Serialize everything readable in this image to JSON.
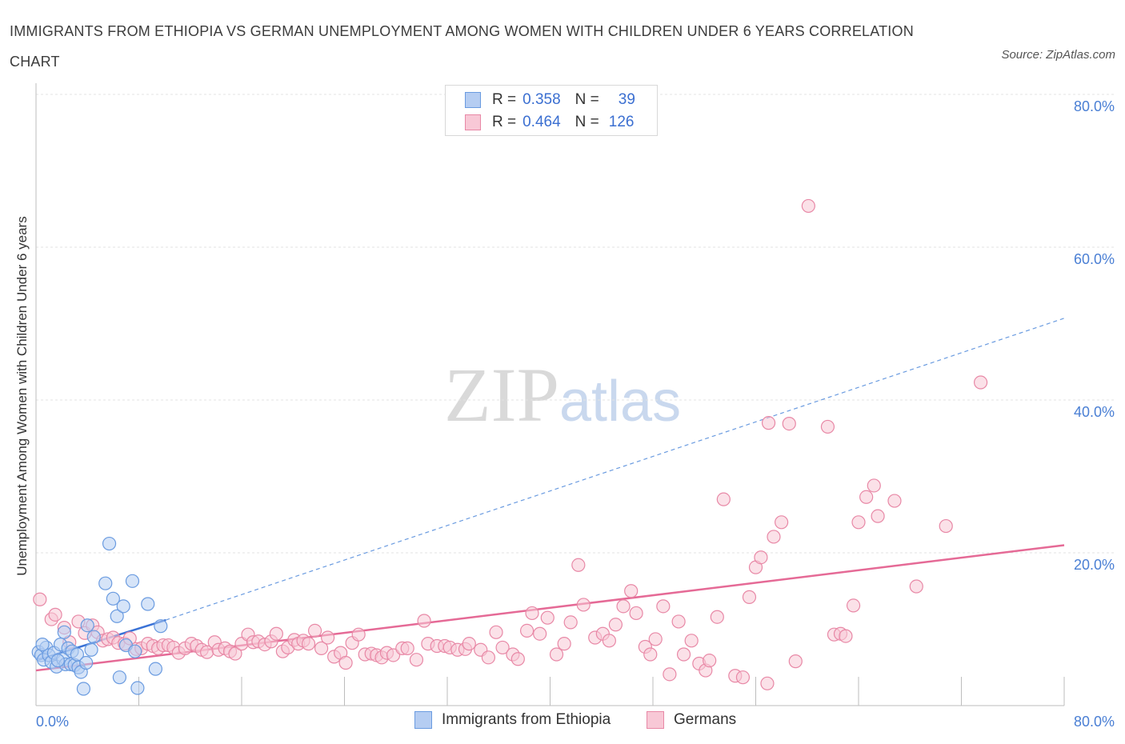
{
  "header": {
    "title": "IMMIGRANTS FROM ETHIOPIA VS GERMAN UNEMPLOYMENT AMONG WOMEN WITH CHILDREN UNDER 6 YEARS CORRELATION CHART",
    "source": "Source: ZipAtlas.com"
  },
  "watermark": {
    "zip": "ZIP",
    "atlas": "atlas"
  },
  "legend_top": {
    "rows": [
      {
        "r_label": "R =",
        "r_value": "0.358",
        "n_label": "N =",
        "n_value": "39",
        "color": "#6a9be0",
        "fill": "#b5cdf2"
      },
      {
        "r_label": "R =",
        "r_value": "0.464",
        "n_label": "N =",
        "n_value": "126",
        "color": "#e888a6",
        "fill": "#f8c8d6"
      }
    ]
  },
  "legend_bottom": {
    "items": [
      {
        "label": "Immigrants from Ethiopia"
      },
      {
        "label": "Germans"
      }
    ]
  },
  "chart_data": {
    "type": "scatter",
    "title": "IMMIGRANTS FROM ETHIOPIA VS GERMAN UNEMPLOYMENT AMONG WOMEN WITH CHILDREN UNDER 6 YEARS CORRELATION CHART",
    "xlabel": "",
    "ylabel": "Unemployment Among Women with Children Under 6 years",
    "xlim": [
      0,
      80
    ],
    "ylim": [
      0,
      80
    ],
    "x_tick_labels": [
      "0.0%",
      "80.0%"
    ],
    "y_ticks": [
      20,
      40,
      60,
      80
    ],
    "y_tick_labels": [
      "20.0%",
      "40.0%",
      "60.0%",
      "80.0%"
    ],
    "grid": true,
    "legend": "top-center",
    "series": [
      {
        "name": "Immigrants from Ethiopia",
        "color": "#6a9be0",
        "fill": "#b5cdf2",
        "trend": {
          "x": [
            0.2,
            10.1
          ],
          "y": [
            6.0,
            11.2
          ],
          "style": "solid"
        },
        "trend_ext": {
          "x": [
            10.1,
            80
          ],
          "y": [
            11.2,
            50.7
          ],
          "style": "dashed"
        },
        "points": [
          [
            0.2,
            7.0
          ],
          [
            0.4,
            6.6
          ],
          [
            0.6,
            6.0
          ],
          [
            0.8,
            7.6
          ],
          [
            1.0,
            6.6
          ],
          [
            1.2,
            5.7
          ],
          [
            1.4,
            6.9
          ],
          [
            1.6,
            5.1
          ],
          [
            1.9,
            8.0
          ],
          [
            2.1,
            6.1
          ],
          [
            2.2,
            9.6
          ],
          [
            2.3,
            5.4
          ],
          [
            2.5,
            7.5
          ],
          [
            2.7,
            5.4
          ],
          [
            2.8,
            7.1
          ],
          [
            3.0,
            5.3
          ],
          [
            3.2,
            6.7
          ],
          [
            3.3,
            5.0
          ],
          [
            3.5,
            4.4
          ],
          [
            3.7,
            2.2
          ],
          [
            3.9,
            5.6
          ],
          [
            4.3,
            7.3
          ],
          [
            4.5,
            9.0
          ],
          [
            5.4,
            16.0
          ],
          [
            5.7,
            21.2
          ],
          [
            6.0,
            14.0
          ],
          [
            6.3,
            11.7
          ],
          [
            6.5,
            3.7
          ],
          [
            6.8,
            13.0
          ],
          [
            7.0,
            7.9
          ],
          [
            7.5,
            16.3
          ],
          [
            7.7,
            7.1
          ],
          [
            7.9,
            2.3
          ],
          [
            8.7,
            13.3
          ],
          [
            9.3,
            4.8
          ],
          [
            9.7,
            10.4
          ],
          [
            0.5,
            8.0
          ],
          [
            1.7,
            5.9
          ],
          [
            4.0,
            10.5
          ]
        ]
      },
      {
        "name": "Germans",
        "color": "#e888a6",
        "fill": "#f8c8d6",
        "trend": {
          "x": [
            0,
            80
          ],
          "y": [
            4.6,
            21.0
          ],
          "style": "solid"
        },
        "points": [
          [
            0.3,
            13.9
          ],
          [
            1.2,
            11.3
          ],
          [
            1.5,
            11.9
          ],
          [
            2.2,
            10.2
          ],
          [
            2.6,
            8.3
          ],
          [
            3.3,
            11.0
          ],
          [
            3.8,
            9.5
          ],
          [
            4.4,
            10.5
          ],
          [
            4.8,
            9.6
          ],
          [
            5.2,
            8.5
          ],
          [
            5.6,
            8.7
          ],
          [
            6.0,
            8.9
          ],
          [
            6.4,
            8.2
          ],
          [
            6.9,
            8.1
          ],
          [
            7.3,
            8.8
          ],
          [
            7.8,
            7.4
          ],
          [
            8.2,
            7.5
          ],
          [
            8.7,
            8.1
          ],
          [
            9.1,
            7.8
          ],
          [
            9.5,
            7.5
          ],
          [
            9.9,
            7.9
          ],
          [
            10.3,
            7.9
          ],
          [
            10.7,
            7.6
          ],
          [
            11.1,
            6.9
          ],
          [
            11.6,
            7.5
          ],
          [
            12.1,
            8.1
          ],
          [
            12.5,
            7.8
          ],
          [
            12.9,
            7.3
          ],
          [
            13.3,
            7.0
          ],
          [
            13.9,
            8.3
          ],
          [
            14.2,
            7.3
          ],
          [
            14.7,
            7.5
          ],
          [
            15.1,
            7.1
          ],
          [
            15.5,
            6.8
          ],
          [
            16.0,
            8.1
          ],
          [
            16.5,
            9.3
          ],
          [
            16.9,
            8.3
          ],
          [
            17.3,
            8.4
          ],
          [
            17.8,
            8.0
          ],
          [
            18.3,
            8.4
          ],
          [
            18.7,
            9.4
          ],
          [
            19.2,
            7.1
          ],
          [
            19.6,
            7.6
          ],
          [
            20.1,
            8.6
          ],
          [
            20.4,
            8.1
          ],
          [
            20.8,
            8.5
          ],
          [
            21.2,
            8.1
          ],
          [
            21.7,
            9.8
          ],
          [
            22.2,
            7.5
          ],
          [
            22.7,
            8.9
          ],
          [
            23.2,
            6.4
          ],
          [
            23.7,
            6.9
          ],
          [
            24.1,
            5.6
          ],
          [
            24.6,
            8.2
          ],
          [
            25.1,
            9.3
          ],
          [
            25.6,
            6.7
          ],
          [
            26.1,
            6.8
          ],
          [
            26.5,
            6.6
          ],
          [
            26.9,
            6.3
          ],
          [
            27.3,
            6.9
          ],
          [
            27.8,
            6.6
          ],
          [
            28.5,
            7.5
          ],
          [
            28.9,
            7.5
          ],
          [
            29.6,
            6.0
          ],
          [
            30.2,
            11.1
          ],
          [
            30.5,
            8.1
          ],
          [
            31.2,
            7.8
          ],
          [
            31.8,
            7.8
          ],
          [
            32.2,
            7.6
          ],
          [
            32.8,
            7.3
          ],
          [
            33.4,
            7.4
          ],
          [
            33.7,
            8.1
          ],
          [
            34.6,
            7.3
          ],
          [
            35.2,
            6.3
          ],
          [
            35.8,
            9.6
          ],
          [
            36.3,
            7.6
          ],
          [
            37.1,
            6.7
          ],
          [
            37.5,
            6.1
          ],
          [
            38.2,
            9.8
          ],
          [
            38.6,
            12.1
          ],
          [
            39.2,
            9.4
          ],
          [
            39.8,
            11.5
          ],
          [
            40.5,
            6.7
          ],
          [
            41.1,
            8.1
          ],
          [
            41.6,
            10.9
          ],
          [
            42.2,
            18.4
          ],
          [
            42.6,
            13.2
          ],
          [
            43.5,
            8.9
          ],
          [
            44.1,
            9.4
          ],
          [
            44.6,
            8.5
          ],
          [
            45.1,
            10.6
          ],
          [
            45.7,
            13.0
          ],
          [
            46.3,
            15.0
          ],
          [
            46.7,
            12.1
          ],
          [
            47.4,
            7.7
          ],
          [
            47.8,
            6.7
          ],
          [
            48.2,
            8.7
          ],
          [
            48.8,
            13.0
          ],
          [
            49.3,
            4.1
          ],
          [
            50.0,
            11.0
          ],
          [
            50.4,
            6.7
          ],
          [
            51.0,
            8.5
          ],
          [
            51.6,
            5.5
          ],
          [
            52.1,
            4.6
          ],
          [
            52.4,
            5.9
          ],
          [
            53.0,
            11.6
          ],
          [
            53.5,
            27.0
          ],
          [
            54.4,
            3.9
          ],
          [
            55.0,
            3.7
          ],
          [
            55.5,
            14.2
          ],
          [
            56.0,
            18.1
          ],
          [
            56.4,
            19.4
          ],
          [
            56.9,
            2.9
          ],
          [
            57.4,
            22.1
          ],
          [
            58.0,
            24.0
          ],
          [
            58.6,
            36.9
          ],
          [
            59.1,
            5.8
          ],
          [
            60.1,
            65.4
          ],
          [
            61.6,
            36.5
          ],
          [
            62.1,
            9.3
          ],
          [
            62.6,
            9.4
          ],
          [
            63.6,
            13.1
          ],
          [
            64.0,
            24.0
          ],
          [
            64.6,
            27.3
          ],
          [
            65.2,
            28.8
          ],
          [
            65.5,
            24.8
          ],
          [
            66.8,
            26.8
          ],
          [
            68.5,
            15.6
          ],
          [
            70.8,
            23.5
          ],
          [
            73.5,
            42.3
          ],
          [
            63.0,
            9.1
          ],
          [
            57.0,
            37.0
          ]
        ]
      }
    ]
  }
}
